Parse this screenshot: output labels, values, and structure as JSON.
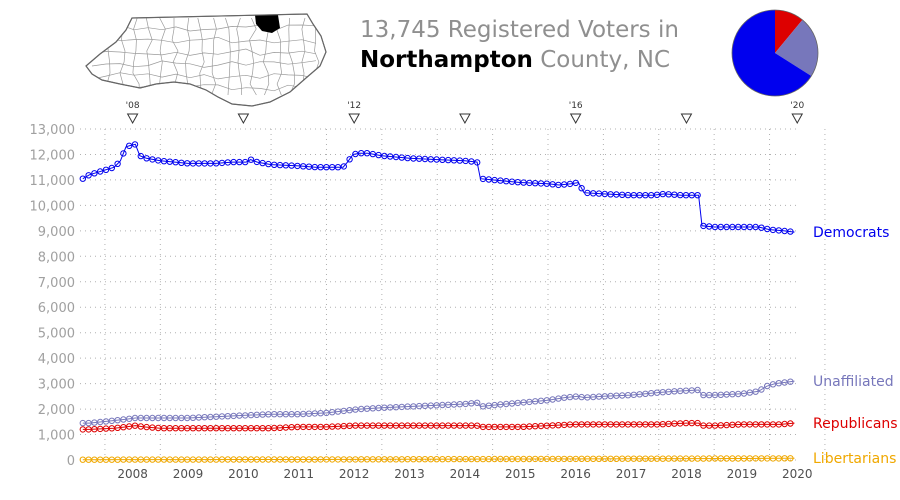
{
  "title": {
    "line1": "13,745 Registered Voters in",
    "county": "Northampton",
    "county_suffix": "County, NC"
  },
  "colors": {
    "democrats": "#0000ee",
    "unaffiliated": "#7777bb",
    "republicans": "#dd0000",
    "libertarians": "#f0a800",
    "axis_text": "#a0a0a0",
    "grid": "#b0b0b0"
  },
  "pie_chart": {
    "type": "pie",
    "slices": [
      {
        "party": "Republicans",
        "share": 0.11
      },
      {
        "party": "Unaffiliated",
        "share": 0.23
      },
      {
        "party": "Democrats",
        "share": 0.66
      }
    ]
  },
  "map": {
    "state": "NC",
    "highlighted_county": "Northampton"
  },
  "chart_data": {
    "type": "line",
    "ylim": [
      0,
      13000
    ],
    "yticks": [
      "0",
      "1,000",
      "2,000",
      "3,000",
      "4,000",
      "5,000",
      "6,000",
      "7,000",
      "8,000",
      "9,000",
      "10,000",
      "11,000",
      "12,000",
      "13,000"
    ],
    "xlim": [
      2007.55,
      2020.55
    ],
    "xticks": [
      "2008",
      "2009",
      "2010",
      "2011",
      "2012",
      "2013",
      "2014",
      "2015",
      "2016",
      "2017",
      "2018",
      "2019",
      "2020"
    ],
    "election_markers": [
      {
        "year": 2008.5,
        "label": "'08"
      },
      {
        "year": 2010.5,
        "label": ""
      },
      {
        "year": 2012.5,
        "label": "'12"
      },
      {
        "year": 2014.5,
        "label": ""
      },
      {
        "year": 2016.5,
        "label": "'16"
      },
      {
        "year": 2018.5,
        "label": ""
      },
      {
        "year": 2020.5,
        "label": "'20"
      }
    ],
    "grid": true,
    "series": [
      {
        "name": "Democrats",
        "color": "#0000ee",
        "points": [
          [
            2007.6,
            11050
          ],
          [
            2007.72,
            11200
          ],
          [
            2008.17,
            11500
          ],
          [
            2008.28,
            11750
          ],
          [
            2008.38,
            12300
          ],
          [
            2008.45,
            12350
          ],
          [
            2008.55,
            12400
          ],
          [
            2008.63,
            11950
          ],
          [
            2008.75,
            11850
          ],
          [
            2009.0,
            11750
          ],
          [
            2009.5,
            11650
          ],
          [
            2010.0,
            11650
          ],
          [
            2010.3,
            11700
          ],
          [
            2010.55,
            11700
          ],
          [
            2010.63,
            11800
          ],
          [
            2010.75,
            11700
          ],
          [
            2011.0,
            11600
          ],
          [
            2011.5,
            11550
          ],
          [
            2011.8,
            11500
          ],
          [
            2012.15,
            11500
          ],
          [
            2012.3,
            11500
          ],
          [
            2012.38,
            11700
          ],
          [
            2012.48,
            12000
          ],
          [
            2012.6,
            12050
          ],
          [
            2012.75,
            12050
          ],
          [
            2013.0,
            11950
          ],
          [
            2013.5,
            11850
          ],
          [
            2014.0,
            11800
          ],
          [
            2014.5,
            11750
          ],
          [
            2014.72,
            11700
          ],
          [
            2014.78,
            11050
          ],
          [
            2015.0,
            11000
          ],
          [
            2015.5,
            10900
          ],
          [
            2016.0,
            10850
          ],
          [
            2016.2,
            10800
          ],
          [
            2016.42,
            10850
          ],
          [
            2016.55,
            10900
          ],
          [
            2016.65,
            10500
          ],
          [
            2017.0,
            10450
          ],
          [
            2017.5,
            10400
          ],
          [
            2017.9,
            10400
          ],
          [
            2018.1,
            10450
          ],
          [
            2018.4,
            10400
          ],
          [
            2018.55,
            10400
          ],
          [
            2018.72,
            10400
          ],
          [
            2018.78,
            9200
          ],
          [
            2019.0,
            9150
          ],
          [
            2019.5,
            9150
          ],
          [
            2019.8,
            9150
          ],
          [
            2020.0,
            9050
          ],
          [
            2020.25,
            9000
          ],
          [
            2020.45,
            8950
          ]
        ]
      },
      {
        "name": "Unaffiliated",
        "color": "#7777bb",
        "points": [
          [
            2007.6,
            1450
          ],
          [
            2007.72,
            1450
          ],
          [
            2008.17,
            1550
          ],
          [
            2008.38,
            1600
          ],
          [
            2008.55,
            1650
          ],
          [
            2009.0,
            1650
          ],
          [
            2009.5,
            1650
          ],
          [
            2010.0,
            1700
          ],
          [
            2010.5,
            1750
          ],
          [
            2011.0,
            1800
          ],
          [
            2011.5,
            1800
          ],
          [
            2012.0,
            1850
          ],
          [
            2012.4,
            1950
          ],
          [
            2012.6,
            2000
          ],
          [
            2013.0,
            2050
          ],
          [
            2013.5,
            2100
          ],
          [
            2014.0,
            2150
          ],
          [
            2014.5,
            2200
          ],
          [
            2014.72,
            2250
          ],
          [
            2014.78,
            2100
          ],
          [
            2015.0,
            2150
          ],
          [
            2015.5,
            2250
          ],
          [
            2016.0,
            2350
          ],
          [
            2016.3,
            2450
          ],
          [
            2016.55,
            2500
          ],
          [
            2016.65,
            2450
          ],
          [
            2017.0,
            2500
          ],
          [
            2017.5,
            2550
          ],
          [
            2018.0,
            2650
          ],
          [
            2018.3,
            2700
          ],
          [
            2018.72,
            2750
          ],
          [
            2018.78,
            2550
          ],
          [
            2019.0,
            2550
          ],
          [
            2019.5,
            2600
          ],
          [
            2019.8,
            2700
          ],
          [
            2019.95,
            2900
          ],
          [
            2020.1,
            3000
          ],
          [
            2020.3,
            3050
          ],
          [
            2020.45,
            3100
          ]
        ]
      },
      {
        "name": "Republicans",
        "color": "#dd0000",
        "points": [
          [
            2007.6,
            1200
          ],
          [
            2007.72,
            1200
          ],
          [
            2008.17,
            1250
          ],
          [
            2008.38,
            1300
          ],
          [
            2008.55,
            1350
          ],
          [
            2008.7,
            1300
          ],
          [
            2009.0,
            1250
          ],
          [
            2009.5,
            1250
          ],
          [
            2010.0,
            1250
          ],
          [
            2010.5,
            1250
          ],
          [
            2011.0,
            1250
          ],
          [
            2011.5,
            1300
          ],
          [
            2012.0,
            1300
          ],
          [
            2012.5,
            1350
          ],
          [
            2013.0,
            1350
          ],
          [
            2013.5,
            1350
          ],
          [
            2014.0,
            1350
          ],
          [
            2014.72,
            1350
          ],
          [
            2014.78,
            1300
          ],
          [
            2015.0,
            1300
          ],
          [
            2015.5,
            1300
          ],
          [
            2016.0,
            1350
          ],
          [
            2016.5,
            1400
          ],
          [
            2017.0,
            1400
          ],
          [
            2017.5,
            1400
          ],
          [
            2018.0,
            1400
          ],
          [
            2018.5,
            1450
          ],
          [
            2018.72,
            1450
          ],
          [
            2018.78,
            1350
          ],
          [
            2019.0,
            1350
          ],
          [
            2019.5,
            1400
          ],
          [
            2019.8,
            1400
          ],
          [
            2020.0,
            1400
          ],
          [
            2020.2,
            1400
          ],
          [
            2020.45,
            1450
          ]
        ]
      },
      {
        "name": "Libertarians",
        "color": "#f0a800",
        "points": [
          [
            2007.6,
            10
          ],
          [
            2008.5,
            15
          ],
          [
            2009.5,
            15
          ],
          [
            2010.5,
            20
          ],
          [
            2011.5,
            20
          ],
          [
            2012.5,
            25
          ],
          [
            2013.5,
            30
          ],
          [
            2014.5,
            35
          ],
          [
            2015.5,
            40
          ],
          [
            2016.5,
            45
          ],
          [
            2017.5,
            50
          ],
          [
            2018.5,
            55
          ],
          [
            2019.5,
            60
          ],
          [
            2020.2,
            65
          ],
          [
            2020.45,
            70
          ]
        ]
      }
    ]
  }
}
